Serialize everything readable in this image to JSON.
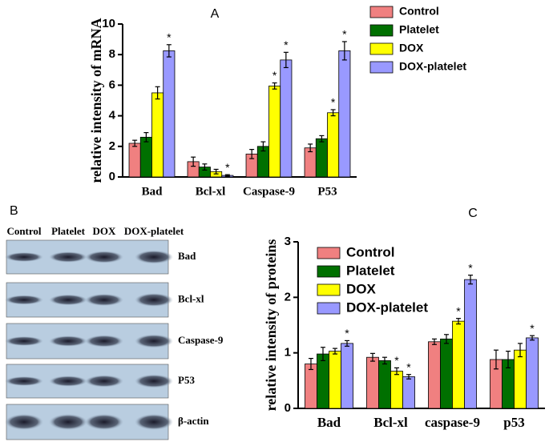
{
  "chart_data": [
    {
      "type": "bar",
      "title": "A",
      "ylabel": "relative intensity of mRNA",
      "categories": [
        "Bad",
        "Bcl-xl",
        "Caspase-9",
        "P53"
      ],
      "ylim": [
        0,
        10
      ],
      "yticks": [
        0,
        2,
        4,
        6,
        8,
        10
      ],
      "legend": "outside right",
      "series": [
        {
          "name": "Control",
          "color": "#f08080",
          "values": [
            2.2,
            1.0,
            1.5,
            1.9
          ],
          "errors": [
            0.2,
            0.3,
            0.3,
            0.25
          ],
          "marks": [
            null,
            null,
            null,
            null
          ]
        },
        {
          "name": "Platelet",
          "color": "#007000",
          "values": [
            2.6,
            0.65,
            2.0,
            2.5
          ],
          "errors": [
            0.3,
            0.2,
            0.3,
            0.2
          ],
          "marks": [
            null,
            null,
            null,
            null
          ]
        },
        {
          "name": "DOX",
          "color": "#ffff00",
          "values": [
            5.5,
            0.35,
            5.95,
            4.2
          ],
          "errors": [
            0.4,
            0.15,
            0.2,
            0.2
          ],
          "marks": [
            null,
            null,
            "*",
            "*"
          ]
        },
        {
          "name": "DOX-platelet",
          "color": "#9999ff",
          "values": [
            8.25,
            0.1,
            7.65,
            8.25
          ],
          "errors": [
            0.4,
            0.05,
            0.5,
            0.6
          ],
          "marks": [
            "*",
            "*",
            "*",
            "*"
          ]
        }
      ]
    },
    {
      "type": "bar",
      "title": "C",
      "ylabel": "relative intensity of proteins",
      "categories": [
        "Bad",
        "Bcl-xl",
        "caspase-9",
        "p53"
      ],
      "ylim": [
        0,
        3
      ],
      "yticks": [
        0,
        1,
        2,
        3
      ],
      "legend": "upper left",
      "series": [
        {
          "name": "Control",
          "color": "#f08080",
          "values": [
            0.8,
            0.92,
            1.2,
            0.88
          ],
          "errors": [
            0.1,
            0.07,
            0.05,
            0.17
          ],
          "marks": [
            null,
            null,
            null,
            null
          ]
        },
        {
          "name": "Platelet",
          "color": "#007000",
          "values": [
            0.98,
            0.86,
            1.25,
            0.88
          ],
          "errors": [
            0.12,
            0.06,
            0.08,
            0.15
          ],
          "marks": [
            null,
            null,
            null,
            null
          ]
        },
        {
          "name": "DOX",
          "color": "#ffff00",
          "values": [
            1.03,
            0.67,
            1.57,
            1.05
          ],
          "errors": [
            0.05,
            0.06,
            0.05,
            0.12
          ],
          "marks": [
            null,
            "*",
            "*",
            null
          ]
        },
        {
          "name": "DOX-platelet",
          "color": "#9999ff",
          "values": [
            1.17,
            0.57,
            2.32,
            1.27
          ],
          "errors": [
            0.05,
            0.04,
            0.08,
            0.04
          ],
          "marks": [
            "*",
            "*",
            "*",
            "*"
          ]
        }
      ]
    }
  ],
  "blot": {
    "label": "B",
    "lanes": [
      "Control",
      "Platelet",
      "DOX",
      "DOX-platelet"
    ],
    "rows": [
      "Bad",
      "Bcl-xl",
      "Caspase-9",
      "P53",
      "β-actin"
    ]
  }
}
